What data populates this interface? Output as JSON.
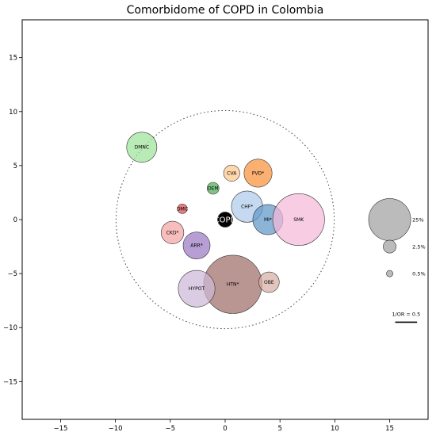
{
  "chart_data": {
    "type": "scatter",
    "title": "Comorbidome of COPD in Colombia",
    "xlim": [
      -18.5,
      18.5
    ],
    "ylim": [
      -18.5,
      18.5
    ],
    "xticks": [
      -15,
      -10,
      -5,
      0,
      5,
      10,
      15
    ],
    "yticks": [
      15,
      10,
      5,
      0,
      -5,
      -10,
      -15
    ],
    "grid": false,
    "reference_circle": {
      "center": [
        0,
        0
      ],
      "radius": 10.1,
      "style": "dotted"
    },
    "bubbles": [
      {
        "label": "DMNC",
        "x": -7.6,
        "y": 6.7,
        "size": 1.4,
        "color": "#9ee39a"
      },
      {
        "label": "CVA",
        "x": 0.6,
        "y": 4.3,
        "size": 0.75,
        "color": "#fdc78c"
      },
      {
        "label": "PVD*",
        "x": 3.0,
        "y": 4.3,
        "size": 1.3,
        "color": "#f7923a"
      },
      {
        "label": "DEM",
        "x": -1.1,
        "y": 2.9,
        "size": 0.55,
        "color": "#4fae55"
      },
      {
        "label": "DMC",
        "x": -3.9,
        "y": 1.0,
        "size": 0.45,
        "color": "#d94a4a"
      },
      {
        "label": "CHF*",
        "x": 2.0,
        "y": 1.2,
        "size": 1.45,
        "color": "#aecbea"
      },
      {
        "label": "MI*",
        "x": 3.9,
        "y": 0.0,
        "size": 1.4,
        "color": "#5f97c8"
      },
      {
        "label": "SMK",
        "x": 6.7,
        "y": 0.0,
        "size": 2.4,
        "color": "#f5b9d8"
      },
      {
        "label": "COPD",
        "x": 0.0,
        "y": 0.0,
        "size": 0.7,
        "color": "#000000"
      },
      {
        "label": "CKD*",
        "x": -4.8,
        "y": -1.2,
        "size": 1.05,
        "color": "#f5a5a5"
      },
      {
        "label": "ARR*",
        "x": -2.6,
        "y": -2.4,
        "size": 1.25,
        "color": "#9b79c4"
      },
      {
        "label": "HTN*",
        "x": 0.7,
        "y": -6.0,
        "size": 2.7,
        "color": "#9e6d66"
      },
      {
        "label": "OBE",
        "x": 4.0,
        "y": -5.8,
        "size": 0.95,
        "color": "#d8aea6"
      },
      {
        "label": "HYPOT",
        "x": -2.6,
        "y": -6.4,
        "size": 1.7,
        "color": "#cdb9d8"
      }
    ],
    "size_legend": [
      {
        "label": "25%",
        "x": 15,
        "y": 0,
        "size": 1.95
      },
      {
        "label": "2.5%",
        "x": 15,
        "y": -2.5,
        "size": 0.6
      },
      {
        "label": "0.5%",
        "x": 15,
        "y": -5.0,
        "size": 0.3
      }
    ],
    "scale_bar": {
      "label": "1/OR = 0.5",
      "x_start": 15.5,
      "x_end": 17.5,
      "y": -9.5
    }
  }
}
